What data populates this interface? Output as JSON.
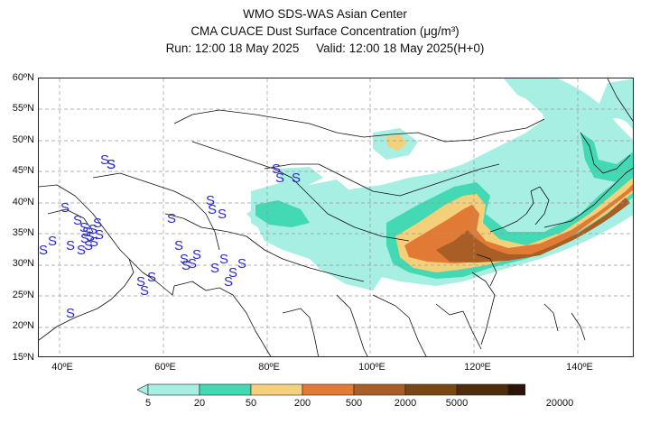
{
  "title": {
    "line1": "WMO SDS-WAS Asian Center",
    "line2": "CMA CUACE Dust Surface Concentration (μg/m³)",
    "line3": "Run: 12:00 18 May 2025     Valid: 12:00 18 May 2025(H+0)"
  },
  "map": {
    "lon_range": [
      35,
      150
    ],
    "lat_range": [
      15,
      60
    ],
    "lat_ticks": [
      "60ºN",
      "55ºN",
      "50ºN",
      "45ºN",
      "40ºN",
      "35ºN",
      "30ºN",
      "25ºN",
      "20ºN",
      "15ºN"
    ],
    "lon_ticks": [
      "40ºE",
      "60ºE",
      "80ºE",
      "100ºE",
      "120ºE",
      "140ºE"
    ],
    "dust_symbol": "S",
    "dust_symbol_color": "#2a2ad0"
  },
  "legend": {
    "labels": [
      "5",
      "20",
      "50",
      "200",
      "500",
      "2000",
      "5000",
      "20000"
    ],
    "colors": [
      "#a6efe2",
      "#43d9b4",
      "#f5d07a",
      "#e07a35",
      "#a85e24",
      "#7a4714",
      "#4e2c0c",
      "#2a1506"
    ]
  }
}
